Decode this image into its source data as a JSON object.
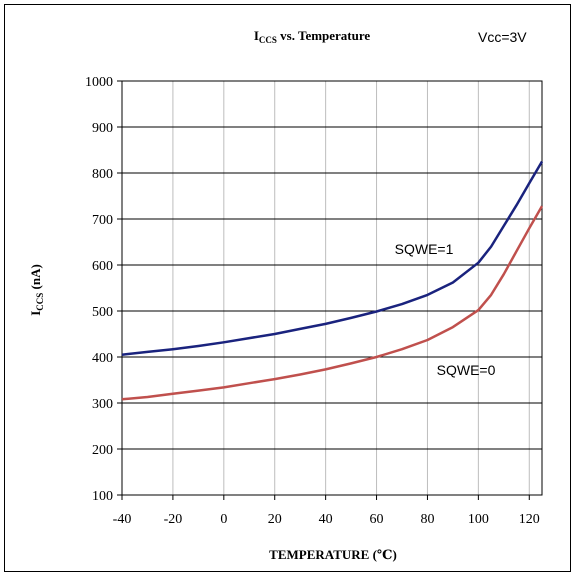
{
  "chart_data": {
    "type": "line",
    "title_main": "I",
    "title_sub": "CCS",
    "title_rest": " vs. Temperature",
    "condition": "Vcc=3V",
    "xlabel": "TEMPERATURE (℃)",
    "ylabel_main": "I",
    "ylabel_sub": "CCS",
    "ylabel_rest": " (nA)",
    "xlim": [
      -40,
      125
    ],
    "ylim": [
      100,
      1000
    ],
    "xticks": [
      -40,
      -20,
      0,
      20,
      40,
      60,
      80,
      100,
      120
    ],
    "yticks": [
      100,
      200,
      300,
      400,
      500,
      600,
      700,
      800,
      900,
      1000
    ],
    "grid": true,
    "series": [
      {
        "name": "SQWE=1",
        "color": "#1a237e",
        "x": [
          -40,
          -30,
          -20,
          -10,
          0,
          10,
          20,
          30,
          40,
          50,
          60,
          70,
          80,
          90,
          100,
          105,
          110,
          115,
          120,
          125
        ],
        "y": [
          405,
          411,
          417,
          424,
          432,
          441,
          450,
          461,
          472,
          485,
          499,
          515,
          535,
          562,
          605,
          640,
          685,
          730,
          778,
          825
        ]
      },
      {
        "name": "SQWE=0",
        "color": "#c0504d",
        "x": [
          -40,
          -30,
          -20,
          -10,
          0,
          10,
          20,
          30,
          40,
          50,
          60,
          70,
          80,
          90,
          100,
          105,
          110,
          115,
          120,
          125
        ],
        "y": [
          308,
          313,
          320,
          327,
          334,
          343,
          352,
          362,
          373,
          386,
          400,
          417,
          437,
          465,
          502,
          535,
          580,
          630,
          680,
          728
        ]
      }
    ]
  }
}
